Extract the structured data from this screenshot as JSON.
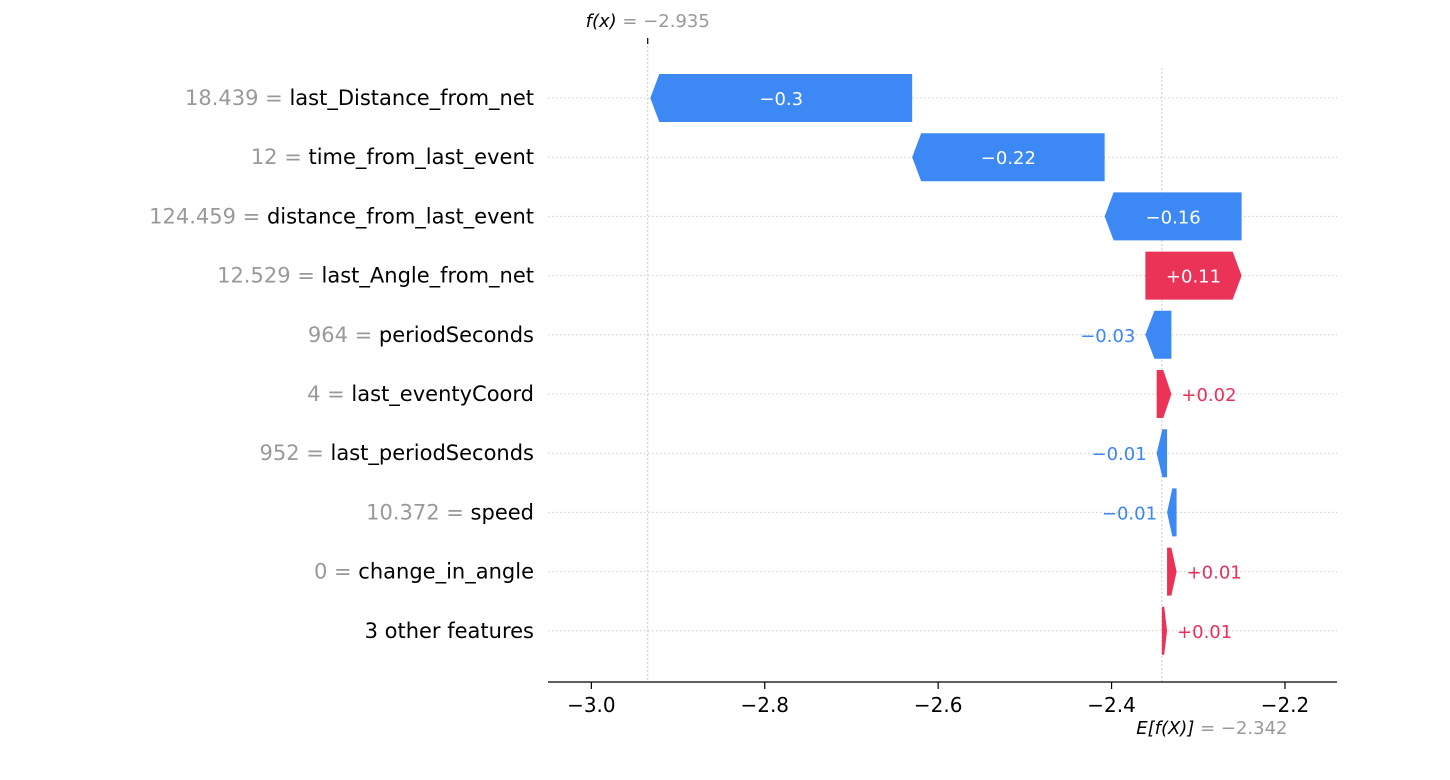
{
  "chart_data": {
    "type": "waterfall",
    "title": "",
    "xlabel": "",
    "ylabel": "",
    "xlim": [
      -3.05,
      -2.14
    ],
    "xticks": [
      {
        "value": -3.0,
        "label": "−3.0"
      },
      {
        "value": -2.8,
        "label": "−2.8"
      },
      {
        "value": -2.6,
        "label": "−2.6"
      },
      {
        "value": -2.4,
        "label": "−2.4"
      },
      {
        "value": -2.2,
        "label": "−2.2"
      }
    ],
    "base_value": -2.342,
    "output_value": -2.935,
    "fx_annotation": {
      "prefix": "f(x)",
      "suffix": " = −2.935"
    },
    "efx_annotation": {
      "prefix": "E[f(X)]",
      "suffix": " = −2.342"
    },
    "features": [
      {
        "value_text": "18.439 = ",
        "name": "last_Distance_from_net",
        "contribution": -0.302,
        "label": "−0.3"
      },
      {
        "value_text": "12 = ",
        "name": "time_from_last_event",
        "contribution": -0.222,
        "label": "−0.22"
      },
      {
        "value_text": "124.459 = ",
        "name": "distance_from_last_event",
        "contribution": -0.158,
        "label": "−0.16"
      },
      {
        "value_text": "12.529 = ",
        "name": "last_Angle_from_net",
        "contribution": 0.111,
        "label": "+0.11"
      },
      {
        "value_text": "964 = ",
        "name": "periodSeconds",
        "contribution": -0.03,
        "label": "−0.03"
      },
      {
        "value_text": "4 = ",
        "name": "last_eventyCoord",
        "contribution": 0.017,
        "label": "+0.02"
      },
      {
        "value_text": "952 = ",
        "name": "last_periodSeconds",
        "contribution": -0.012,
        "label": "−0.01"
      },
      {
        "value_text": "10.372 = ",
        "name": "speed",
        "contribution": -0.011,
        "label": "−0.01"
      },
      {
        "value_text": "0 = ",
        "name": "change_in_angle",
        "contribution": 0.011,
        "label": "+0.01"
      },
      {
        "value_text": "",
        "name": "3 other features",
        "contribution": 0.006,
        "label": "+0.01"
      }
    ],
    "colors": {
      "positive": "#ff0051",
      "negative": "#008bfb",
      "positive_bar": "#ea3356",
      "negative_bar": "#3c88f4",
      "positive_text": "#e8305a",
      "negative_text": "#3a86f2",
      "grid": "#cccccc",
      "axis": "#000000",
      "muted": "#999999"
    },
    "grid": true,
    "legend": "none"
  }
}
